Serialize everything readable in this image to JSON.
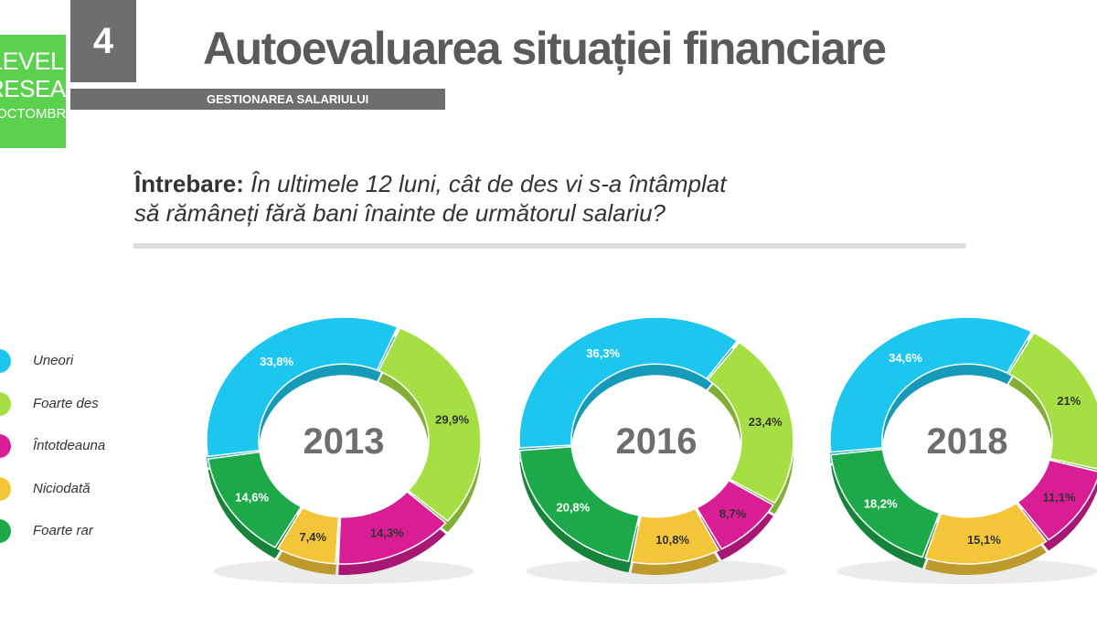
{
  "header": {
    "logo_line1": "LEVEL",
    "logo_line2": "RESEARCH",
    "logo_line3": "OCTOMBRIE",
    "slide_number": "4",
    "title": "Autoevaluarea situației financiare",
    "subtitle": "GESTIONAREA SALARIULUI"
  },
  "question": {
    "label": "Întrebare:",
    "line1": " În ultimele 12 luni, cât de des vi s-a întâmplat",
    "line2": "să rămâneți fără bani înainte de următorul salariu?"
  },
  "colors": {
    "Uneori": "#1cc6ee",
    "Foarte des": "#a6df43",
    "Întotdeauna": "#d81d95",
    "Niciodată": "#f3c63a",
    "Foarte rar": "#1da84a"
  },
  "chart_data": {
    "type": "pie",
    "variant": "donut",
    "categories": [
      "Uneori",
      "Foarte des",
      "Întotdeauna",
      "Niciodată",
      "Foarte rar"
    ],
    "legend_position": "left",
    "charts": [
      {
        "year": "2013",
        "values": [
          33.8,
          29.9,
          14.3,
          7.4,
          14.6
        ],
        "labels": [
          "33,8%",
          "29,9%",
          "14,3%",
          "7,4%",
          "14,6%"
        ]
      },
      {
        "year": "2016",
        "values": [
          36.3,
          23.4,
          8.7,
          10.8,
          20.8
        ],
        "labels": [
          "36,3%",
          "23,4%",
          "8,7%",
          "10,8%",
          "20,8%"
        ]
      },
      {
        "year": "2018",
        "values": [
          34.6,
          21,
          11.1,
          15.1,
          18.2
        ],
        "labels": [
          "34,6%",
          "21%",
          "11,1%",
          "15,1%",
          "18,2%"
        ]
      }
    ]
  }
}
